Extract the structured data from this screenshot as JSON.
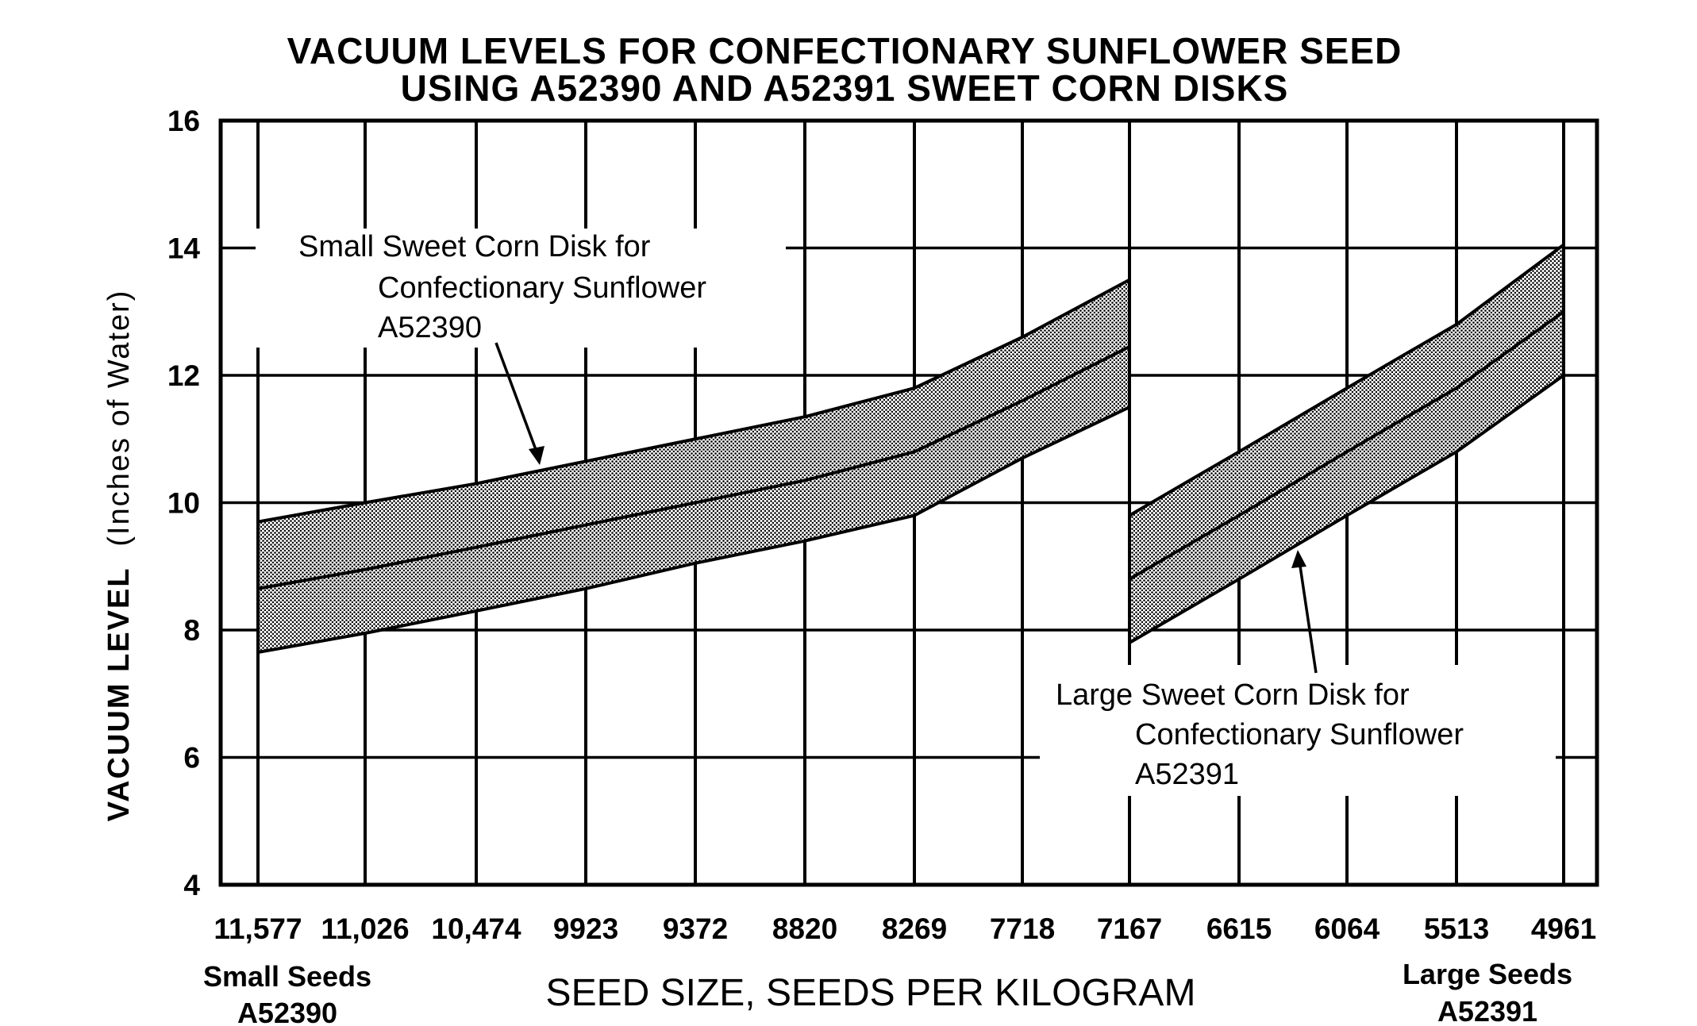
{
  "chart_data": {
    "type": "area",
    "title": "VACUUM LEVELS FOR CONFECTIONARY SUNFLOWER SEED",
    "subtitle": "USING A52390 AND A52391 SWEET CORN DISKS",
    "xlabel": "SEED SIZE, SEEDS PER KILOGRAM",
    "ylabel_main": "VACUUM LEVEL",
    "ylabel_unit": "(Inches of Water)",
    "ylim": [
      4,
      16
    ],
    "y_ticks": [
      "4",
      "6",
      "8",
      "10",
      "12",
      "14",
      "16"
    ],
    "y_tick_values": [
      4,
      6,
      8,
      10,
      12,
      14,
      16
    ],
    "categories": [
      "11,577",
      "11,026",
      "10,474",
      "9923",
      "9372",
      "8820",
      "8269",
      "7718",
      "7167",
      "6615",
      "6064",
      "5513",
      "4961"
    ],
    "x_left_note": [
      "Small Seeds",
      "A52390"
    ],
    "x_right_note": [
      "Large Seeds",
      "A52391"
    ],
    "grid": true,
    "series": [
      {
        "name": "Small Sweet Corn Disk for Confectionary Sunflower A52390",
        "label_lines": [
          "Small Sweet Corn Disk for",
          "Confectionary Sunflower",
          "A52390"
        ],
        "x_index": [
          0,
          1,
          2,
          3,
          4,
          5,
          6,
          7,
          8
        ],
        "upper": [
          9.7,
          10.0,
          10.3,
          10.65,
          11.0,
          11.35,
          11.8,
          12.6,
          13.5
        ],
        "center": [
          8.65,
          8.95,
          9.3,
          9.65,
          10.0,
          10.35,
          10.8,
          11.6,
          12.45
        ],
        "lower": [
          7.65,
          7.95,
          8.3,
          8.65,
          9.05,
          9.4,
          9.8,
          10.7,
          11.5
        ]
      },
      {
        "name": "Large Sweet Corn Disk for Confectionary Sunflower A52391",
        "label_lines": [
          "Large Sweet Corn Disk for",
          "Confectionary Sunflower",
          "A52391"
        ],
        "x_index": [
          8,
          9,
          10,
          11,
          12
        ],
        "upper": [
          9.8,
          10.8,
          11.8,
          12.8,
          14.05
        ],
        "center": [
          8.8,
          9.8,
          10.8,
          11.8,
          13.0
        ],
        "lower": [
          7.8,
          8.8,
          9.8,
          10.8,
          12.0
        ]
      }
    ],
    "colors": {
      "ink": "#000000",
      "band_fill": "#7a7a7a",
      "background": "#ffffff"
    }
  }
}
